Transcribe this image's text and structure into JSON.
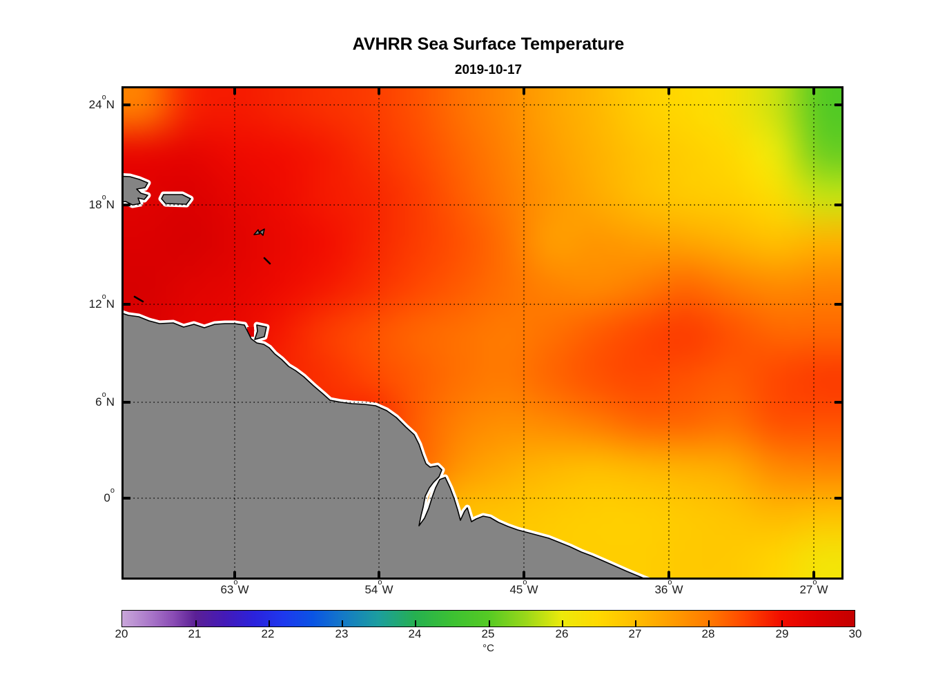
{
  "figure": {
    "title": "AVHRR Sea Surface Temperature",
    "date": "2019-10-17"
  },
  "axes": {
    "deg": "o",
    "lat_ticks": [
      {
        "num": "24",
        "hem": "N"
      },
      {
        "num": "18",
        "hem": "N"
      },
      {
        "num": "12",
        "hem": "N"
      },
      {
        "num": "6",
        "hem": "N"
      },
      {
        "num": "0",
        "hem": ""
      }
    ],
    "lon_ticks": [
      {
        "num": "63",
        "hem": "W"
      },
      {
        "num": "54",
        "hem": "W"
      },
      {
        "num": "45",
        "hem": "W"
      },
      {
        "num": "36",
        "hem": "W"
      },
      {
        "num": "27",
        "hem": "W"
      }
    ]
  },
  "colorbar": {
    "ticks": [
      "20",
      "21",
      "22",
      "23",
      "24",
      "25",
      "26",
      "27",
      "28",
      "29",
      "30"
    ],
    "unit": "°C",
    "min": 20,
    "max": 30,
    "stops": [
      [
        20,
        "#c9a7da"
      ],
      [
        20.4,
        "#a875c8"
      ],
      [
        20.7,
        "#8a4cb4"
      ],
      [
        21,
        "#5b2095"
      ],
      [
        21.4,
        "#441ab8"
      ],
      [
        21.8,
        "#2b22dc"
      ],
      [
        22.2,
        "#1e38ee"
      ],
      [
        22.6,
        "#0a54e4"
      ],
      [
        23,
        "#1478c8"
      ],
      [
        23.5,
        "#1c9e9e"
      ],
      [
        24,
        "#26b050"
      ],
      [
        24.5,
        "#3cc133"
      ],
      [
        25,
        "#55ca24"
      ],
      [
        25.5,
        "#98d71a"
      ],
      [
        26,
        "#ecea0b"
      ],
      [
        26.5,
        "#ffd900"
      ],
      [
        27,
        "#ffbe00"
      ],
      [
        27.5,
        "#ff9d00"
      ],
      [
        28,
        "#ff7b00"
      ],
      [
        28.5,
        "#ff4700"
      ],
      [
        29,
        "#f20d00"
      ],
      [
        29.5,
        "#dc0000"
      ],
      [
        30,
        "#c40000"
      ]
    ]
  },
  "map": {
    "land_color": "#848484",
    "coast_fringe_color": "#ffffff",
    "coastline_color": "#000000"
  },
  "chart_data": {
    "type": "heatmap",
    "title": "AVHRR Sea Surface Temperature",
    "subtitle": "2019-10-17",
    "x_tick_labels": [
      "63°W",
      "54°W",
      "45°W",
      "36°W",
      "27°W"
    ],
    "y_tick_labels": [
      "24°N",
      "18°N",
      "12°N",
      "6°N",
      "0°"
    ],
    "lon_range": [
      -70.1,
      -25.0
    ],
    "lat_range": [
      -4.9,
      25.1
    ],
    "grid_on": true,
    "colorbar": {
      "label": "°C",
      "range": [
        20,
        30
      ],
      "ticks": [
        20,
        21,
        22,
        23,
        24,
        25,
        26,
        27,
        28,
        29,
        30
      ],
      "position": "bottom"
    },
    "land": "gray landmass (South America: Venezuela to Brazil; islands: Hispaniola, Puerto Rico, Lesser Antilles, Trinidad) with white no-data fringe along coasts",
    "grid": {
      "lons": [
        -70,
        -67,
        -64,
        -61,
        -58,
        -55,
        -52,
        -49,
        -46,
        -43,
        -40,
        -37,
        -34,
        -31,
        -28,
        -25
      ],
      "lats": [
        25,
        22,
        19,
        16,
        13,
        10,
        7,
        4,
        1,
        -2,
        -5
      ],
      "sst_c": [
        [
          28.0,
          28.8,
          28.9,
          28.8,
          28.7,
          28.6,
          28.4,
          28.1,
          27.8,
          27.4,
          27.1,
          26.7,
          26.5,
          26.3,
          25.8,
          25.0
        ],
        [
          29.2,
          29.3,
          29.1,
          29.0,
          28.9,
          28.7,
          28.5,
          28.2,
          27.9,
          27.5,
          27.2,
          26.9,
          26.7,
          26.5,
          26.0,
          25.2
        ],
        [
          29.4,
          29.5,
          29.3,
          29.1,
          28.9,
          28.8,
          28.6,
          28.3,
          28.0,
          27.6,
          27.3,
          27.0,
          26.8,
          26.7,
          26.4,
          25.8
        ],
        [
          29.5,
          29.6,
          29.4,
          29.2,
          29.0,
          28.8,
          28.6,
          28.4,
          28.1,
          27.5,
          27.6,
          27.5,
          27.4,
          27.2,
          27.0,
          27.2
        ],
        [
          29.6,
          29.4,
          29.3,
          29.1,
          28.9,
          28.7,
          28.5,
          28.3,
          28.1,
          27.9,
          27.8,
          28.0,
          28.2,
          28.0,
          27.8,
          27.9
        ],
        [
          29.5,
          29.3,
          29.2,
          28.9,
          28.6,
          28.4,
          28.2,
          28.1,
          28.0,
          28.1,
          28.3,
          28.5,
          28.6,
          28.4,
          28.2,
          28.2
        ],
        [
          29.4,
          29.2,
          29.0,
          28.8,
          28.7,
          28.5,
          28.3,
          28.1,
          28.0,
          28.2,
          28.4,
          28.5,
          28.4,
          28.3,
          28.5,
          28.6
        ],
        [
          29.0,
          28.9,
          28.8,
          28.7,
          28.7,
          28.8,
          28.3,
          27.9,
          27.7,
          27.8,
          28.0,
          28.2,
          28.2,
          28.1,
          28.4,
          28.4
        ],
        [
          28.5,
          28.4,
          28.3,
          28.2,
          28.1,
          28.0,
          28.2,
          27.6,
          27.3,
          27.1,
          27.0,
          27.1,
          27.2,
          27.3,
          27.8,
          27.9
        ],
        [
          28.0,
          27.9,
          27.8,
          27.7,
          27.6,
          27.5,
          27.4,
          27.0,
          26.9,
          26.8,
          26.7,
          26.7,
          26.8,
          26.9,
          27.1,
          27.0
        ],
        [
          27.5,
          27.4,
          27.3,
          27.2,
          27.1,
          27.0,
          26.9,
          26.8,
          26.8,
          26.7,
          26.7,
          26.7,
          26.8,
          26.8,
          26.6,
          26.2
        ]
      ]
    }
  }
}
